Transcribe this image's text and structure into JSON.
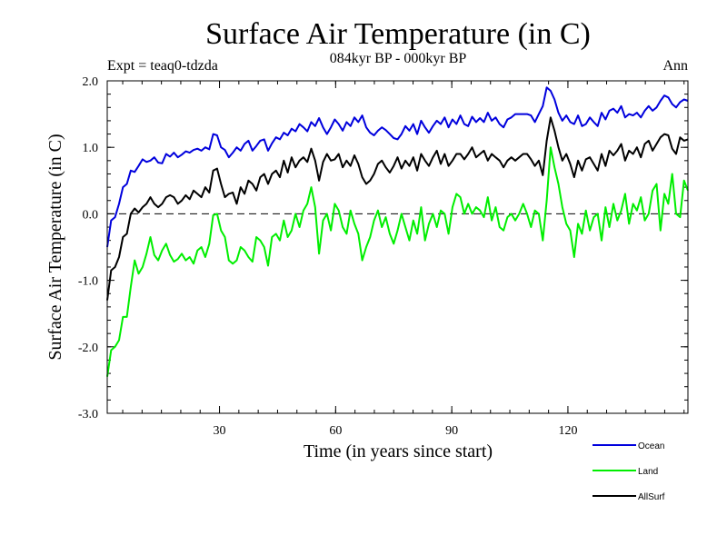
{
  "chart_data": {
    "type": "line",
    "title": "Surface Air Temperature (in C)",
    "subtitle": "084kyr BP - 000kyr BP",
    "expt_label": "Expt = teaq0-tdzda",
    "season_label": "Ann",
    "xlabel": "Time (in years since start)",
    "ylabel": "Surface Air Temperature (in C)",
    "xlim": [
      1,
      151
    ],
    "ylim": [
      -3.0,
      2.0
    ],
    "xticks": [
      30,
      60,
      90,
      120
    ],
    "xtick_labels": [
      "30",
      "60",
      "90",
      "120"
    ],
    "yticks": [
      -3.0,
      -2.0,
      -1.0,
      0.0,
      1.0,
      2.0
    ],
    "ytick_labels": [
      "-3.0",
      "-2.0",
      "-1.0",
      "0.0",
      "1.0",
      "2.0"
    ],
    "zero_line": "dashed",
    "grid": false,
    "legend_position": "bottom-right",
    "series": [
      {
        "name": "Ocean",
        "color": "#0000dd",
        "values": [
          -0.5,
          -0.1,
          -0.05,
          0.15,
          0.4,
          0.45,
          0.65,
          0.63,
          0.72,
          0.82,
          0.78,
          0.8,
          0.85,
          0.77,
          0.76,
          0.9,
          0.86,
          0.92,
          0.85,
          0.89,
          0.94,
          0.92,
          0.96,
          0.98,
          0.95,
          1.0,
          0.97,
          1.2,
          1.18,
          1.0,
          0.96,
          0.85,
          0.92,
          1.0,
          0.95,
          1.05,
          1.1,
          0.95,
          1.02,
          1.1,
          1.12,
          0.95,
          1.06,
          1.15,
          1.12,
          1.22,
          1.18,
          1.28,
          1.24,
          1.35,
          1.3,
          1.24,
          1.38,
          1.32,
          1.44,
          1.3,
          1.2,
          1.3,
          1.42,
          1.35,
          1.25,
          1.38,
          1.32,
          1.45,
          1.38,
          1.48,
          1.3,
          1.22,
          1.18,
          1.25,
          1.3,
          1.26,
          1.2,
          1.14,
          1.12,
          1.2,
          1.32,
          1.25,
          1.35,
          1.2,
          1.4,
          1.3,
          1.22,
          1.32,
          1.4,
          1.35,
          1.45,
          1.3,
          1.42,
          1.35,
          1.48,
          1.35,
          1.32,
          1.46,
          1.38,
          1.44,
          1.38,
          1.52,
          1.4,
          1.45,
          1.35,
          1.3,
          1.42,
          1.45,
          1.5,
          1.5,
          1.5,
          1.5,
          1.48,
          1.38,
          1.5,
          1.62,
          1.9,
          1.85,
          1.72,
          1.52,
          1.4,
          1.48,
          1.38,
          1.35,
          1.48,
          1.32,
          1.35,
          1.45,
          1.38,
          1.32,
          1.52,
          1.42,
          1.55,
          1.58,
          1.52,
          1.62,
          1.45,
          1.5,
          1.48,
          1.52,
          1.45,
          1.55,
          1.62,
          1.55,
          1.6,
          1.7,
          1.78,
          1.75,
          1.65,
          1.6,
          1.68,
          1.72,
          1.7
        ]
      },
      {
        "name": "Land",
        "color": "#00ee00",
        "values": [
          -2.45,
          -2.05,
          -2.0,
          -1.9,
          -1.55,
          -1.55,
          -1.1,
          -0.7,
          -0.9,
          -0.8,
          -0.6,
          -0.35,
          -0.62,
          -0.7,
          -0.55,
          -0.45,
          -0.62,
          -0.72,
          -0.68,
          -0.6,
          -0.7,
          -0.65,
          -0.75,
          -0.55,
          -0.5,
          -0.65,
          -0.45,
          -0.02,
          0.0,
          -0.25,
          -0.35,
          -0.7,
          -0.75,
          -0.7,
          -0.5,
          -0.55,
          -0.65,
          -0.72,
          -0.35,
          -0.4,
          -0.5,
          -0.78,
          -0.35,
          -0.3,
          -0.4,
          -0.1,
          -0.35,
          -0.25,
          0.0,
          -0.2,
          0.05,
          0.15,
          0.4,
          0.1,
          -0.6,
          -0.1,
          0.0,
          -0.25,
          0.15,
          0.05,
          -0.2,
          -0.3,
          0.05,
          -0.15,
          -0.3,
          -0.7,
          -0.5,
          -0.35,
          -0.1,
          0.05,
          -0.2,
          -0.05,
          -0.3,
          -0.45,
          -0.25,
          0.0,
          -0.2,
          -0.4,
          -0.1,
          -0.3,
          0.1,
          -0.4,
          -0.15,
          0.0,
          -0.2,
          0.05,
          0.0,
          -0.3,
          0.1,
          0.3,
          0.25,
          0.0,
          0.15,
          0.0,
          0.1,
          0.05,
          -0.05,
          0.25,
          -0.1,
          0.1,
          -0.2,
          -0.25,
          -0.05,
          0.0,
          -0.1,
          0.0,
          0.15,
          0.0,
          -0.2,
          0.05,
          0.0,
          -0.4,
          0.2,
          1.0,
          0.7,
          0.45,
          0.1,
          -0.15,
          -0.25,
          -0.65,
          -0.15,
          -0.3,
          0.05,
          -0.25,
          -0.05,
          0.0,
          -0.4,
          0.1,
          -0.2,
          0.15,
          -0.1,
          0.05,
          0.3,
          -0.15,
          0.15,
          0.05,
          0.25,
          -0.1,
          0.0,
          0.35,
          0.45,
          -0.25,
          0.3,
          0.15,
          0.6,
          0.0,
          -0.05,
          0.5,
          0.35
        ]
      },
      {
        "name": "AllSurf",
        "color": "#000000",
        "values": [
          -1.3,
          -0.85,
          -0.8,
          -0.65,
          -0.35,
          -0.3,
          0.0,
          0.08,
          0.02,
          0.1,
          0.15,
          0.25,
          0.15,
          0.1,
          0.15,
          0.25,
          0.28,
          0.25,
          0.15,
          0.2,
          0.28,
          0.22,
          0.35,
          0.3,
          0.25,
          0.4,
          0.32,
          0.65,
          0.68,
          0.45,
          0.25,
          0.3,
          0.32,
          0.15,
          0.4,
          0.3,
          0.5,
          0.45,
          0.35,
          0.55,
          0.6,
          0.45,
          0.6,
          0.65,
          0.55,
          0.8,
          0.62,
          0.85,
          0.7,
          0.8,
          0.85,
          0.78,
          0.98,
          0.8,
          0.5,
          0.78,
          0.9,
          0.8,
          0.82,
          0.9,
          0.7,
          0.8,
          0.72,
          0.88,
          0.75,
          0.55,
          0.45,
          0.5,
          0.6,
          0.75,
          0.8,
          0.7,
          0.62,
          0.72,
          0.85,
          0.68,
          0.8,
          0.72,
          0.85,
          0.65,
          0.9,
          0.8,
          0.72,
          0.85,
          0.95,
          0.75,
          0.9,
          0.72,
          0.8,
          0.9,
          0.9,
          0.82,
          0.9,
          1.0,
          0.85,
          0.9,
          0.95,
          0.8,
          0.9,
          0.85,
          0.8,
          0.7,
          0.8,
          0.85,
          0.8,
          0.85,
          0.9,
          0.9,
          0.82,
          0.72,
          0.8,
          0.58,
          1.1,
          1.45,
          1.25,
          1.0,
          0.8,
          0.9,
          0.75,
          0.55,
          0.8,
          0.65,
          0.82,
          0.85,
          0.75,
          0.65,
          0.9,
          0.72,
          0.95,
          0.88,
          0.95,
          1.05,
          0.8,
          0.95,
          0.9,
          1.0,
          0.85,
          1.05,
          1.1,
          0.95,
          1.05,
          1.15,
          1.2,
          1.18,
          0.98,
          0.9,
          1.15,
          1.1,
          1.12
        ]
      }
    ]
  }
}
